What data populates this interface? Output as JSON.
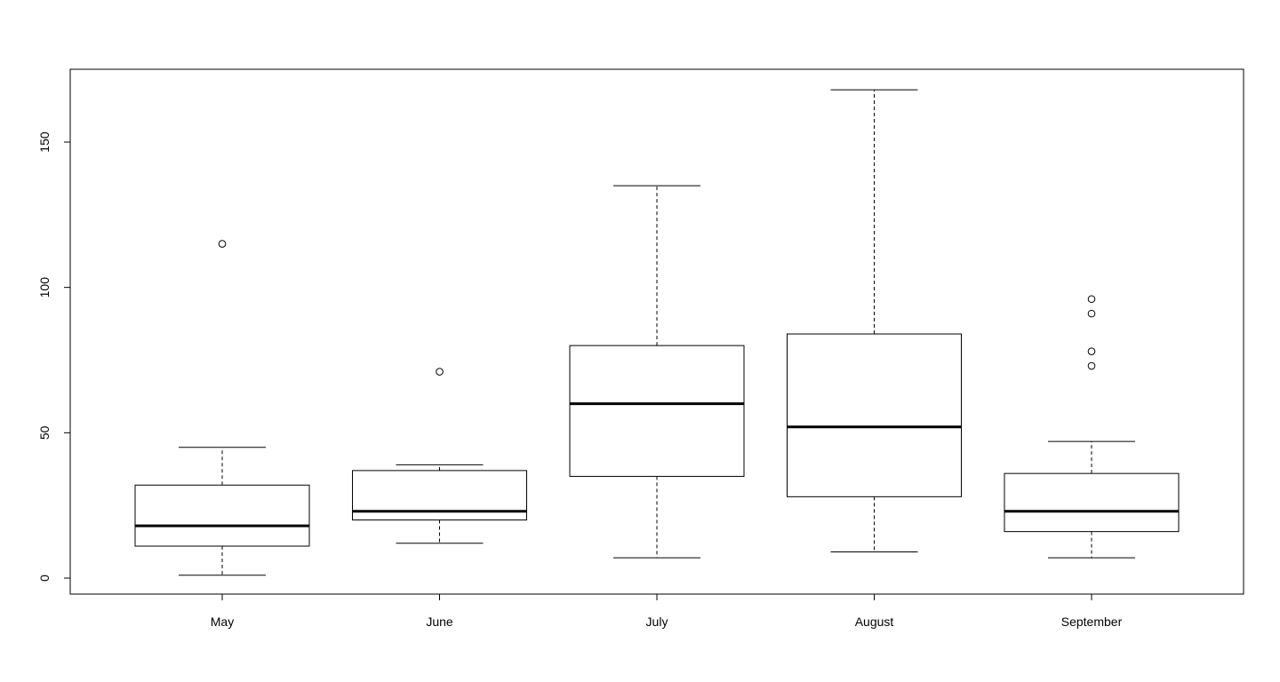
{
  "chart_data": {
    "type": "boxplot",
    "categories": [
      "May",
      "June",
      "July",
      "August",
      "September"
    ],
    "boxes": [
      {
        "category": "May",
        "whisker_low": 1,
        "q1": 11,
        "median": 18,
        "q3": 32,
        "whisker_high": 45,
        "outliers": [
          115
        ]
      },
      {
        "category": "June",
        "whisker_low": 12,
        "q1": 20,
        "median": 23,
        "q3": 37,
        "whisker_high": 39,
        "outliers": [
          71
        ]
      },
      {
        "category": "July",
        "whisker_low": 7,
        "q1": 35,
        "median": 60,
        "q3": 80,
        "whisker_high": 135,
        "outliers": []
      },
      {
        "category": "August",
        "whisker_low": 9,
        "q1": 28,
        "median": 52,
        "q3": 84,
        "whisker_high": 168,
        "outliers": []
      },
      {
        "category": "September",
        "whisker_low": 7,
        "q1": 16,
        "median": 23,
        "q3": 36,
        "whisker_high": 47,
        "outliers": [
          73,
          78,
          91,
          96
        ]
      }
    ],
    "y_ticks": [
      0,
      50,
      100,
      150
    ],
    "ylim": [
      -5.5,
      175
    ],
    "title": "",
    "xlabel": "",
    "ylabel": "",
    "grid": false,
    "colors": {
      "stroke": "#000000",
      "fill": "#ffffff"
    }
  }
}
